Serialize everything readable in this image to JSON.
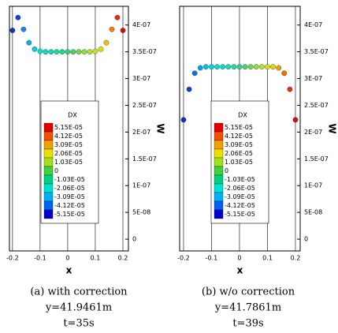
{
  "chart_data": [
    {
      "type": "scatter",
      "x_label": "x",
      "y_label": "W",
      "caption": [
        "(a) with correction",
        "y=41.9461m",
        "t=35s"
      ],
      "xlim": [
        -0.211,
        0.22
      ],
      "ylim": [
        -2.2e-08,
        4.35e-07
      ],
      "xticks": [
        -0.2,
        -0.1,
        0,
        0.1,
        0.2
      ],
      "yticks": [
        0,
        {
          "value": 5e-08,
          "label": "5E-08"
        },
        {
          "value": 1e-07,
          "label": "1E-07"
        },
        {
          "value": 1.5e-07,
          "label": "1.5E-07"
        },
        {
          "value": 2e-07,
          "label": "2E-07"
        },
        {
          "value": 2.5e-07,
          "label": "2.5E-07"
        },
        {
          "value": 3e-07,
          "label": "3E-07"
        },
        {
          "value": 3.5e-07,
          "label": "3.5E-07"
        },
        {
          "value": 4e-07,
          "label": "4E-07"
        }
      ],
      "grid": "x",
      "series": [
        {
          "x": [
            -0.2,
            -0.18,
            -0.16,
            -0.14,
            -0.12,
            -0.1,
            -0.08,
            -0.06,
            -0.04,
            -0.02,
            0,
            0.02,
            0.04,
            0.06,
            0.08,
            0.1,
            0.12,
            0.14,
            0.16,
            0.18,
            0.2
          ],
          "values": [
            3.9e-07,
            4.14e-07,
            3.92e-07,
            3.67e-07,
            3.55e-07,
            3.51e-07,
            3.5e-07,
            3.5e-07,
            3.5e-07,
            3.5e-07,
            3.5e-07,
            3.5e-07,
            3.5e-07,
            3.5e-07,
            3.5e-07,
            3.51e-07,
            3.55e-07,
            3.67e-07,
            3.92e-07,
            4.14e-07,
            3.9e-07
          ],
          "colors": [
            "#1030c0",
            "#1040d0",
            "#2080f0",
            "#00b0f0",
            "#00d0e0",
            "#00e0d0",
            "#00e0c0",
            "#00e0b0",
            "#10e0a0",
            "#20d890",
            "#30d080",
            "#50d060",
            "#70d850",
            "#90e040",
            "#b0e030",
            "#c8e020",
            "#e0e000",
            "#f0c000",
            "#f08000",
            "#e03010",
            "#d01010"
          ]
        }
      ],
      "legend": {
        "title": "DX",
        "levels": [
          {
            "value": 5.15e-05,
            "label": "5.15E-05",
            "color": "#e00000"
          },
          {
            "value": 4.12e-05,
            "label": "4.12E-05",
            "color": "#f05000"
          },
          {
            "value": 3.09e-05,
            "label": "3.09E-05",
            "color": "#f0a000"
          },
          {
            "value": 2.06e-05,
            "label": "2.06E-05",
            "color": "#e8e000"
          },
          {
            "value": 1.03e-05,
            "label": "1.03E-05",
            "color": "#a0e020"
          },
          {
            "value": 0,
            "label": "0",
            "color": "#40d040"
          },
          {
            "value": -1.03e-05,
            "label": "-1.03E-05",
            "color": "#00d080"
          },
          {
            "value": -2.06e-05,
            "label": "-2.06E-05",
            "color": "#00e0d0"
          },
          {
            "value": -3.09e-05,
            "label": "-3.09E-05",
            "color": "#00b0f0"
          },
          {
            "value": -4.12e-05,
            "label": "-4.12E-05",
            "color": "#0060f0"
          },
          {
            "value": -5.15e-05,
            "label": "-5.15E-05",
            "color": "#0000d0"
          }
        ]
      }
    },
    {
      "type": "scatter",
      "x_label": "x",
      "y_label": "W",
      "caption": [
        "(b) w/o correction",
        "y=41.7861m",
        "t=39s"
      ],
      "xlim": [
        -0.214,
        0.217
      ],
      "ylim": [
        -2.2e-08,
        4.35e-07
      ],
      "xticks": [
        -0.2,
        -0.1,
        0,
        0.1,
        0.2
      ],
      "yticks": [
        0,
        {
          "value": 5e-08,
          "label": "5E-08"
        },
        {
          "value": 1e-07,
          "label": "1E-07"
        },
        {
          "value": 1.5e-07,
          "label": "1.5E-07"
        },
        {
          "value": 2e-07,
          "label": "2E-07"
        },
        {
          "value": 2.5e-07,
          "label": "2.5E-07"
        },
        {
          "value": 3e-07,
          "label": "3E-07"
        },
        {
          "value": 3.5e-07,
          "label": "3.5E-07"
        },
        {
          "value": 4e-07,
          "label": "4E-07"
        }
      ],
      "grid": "x",
      "series": [
        {
          "x": [
            -0.2,
            -0.18,
            -0.16,
            -0.14,
            -0.12,
            -0.1,
            -0.08,
            -0.06,
            -0.04,
            -0.02,
            0,
            0.02,
            0.04,
            0.06,
            0.08,
            0.1,
            0.12,
            0.14,
            0.16,
            0.18,
            0.2
          ],
          "values": [
            2.23e-07,
            2.8e-07,
            3.1e-07,
            3.2e-07,
            3.22e-07,
            3.22e-07,
            3.22e-07,
            3.22e-07,
            3.22e-07,
            3.22e-07,
            3.22e-07,
            3.22e-07,
            3.22e-07,
            3.22e-07,
            3.22e-07,
            3.22e-07,
            3.22e-07,
            3.2e-07,
            3.1e-07,
            2.8e-07,
            2.23e-07
          ],
          "colors": [
            "#1030c0",
            "#1040d0",
            "#1070e0",
            "#00a0f0",
            "#00c0f0",
            "#00d0e0",
            "#00e0d0",
            "#00e0c0",
            "#10e0b0",
            "#20d8a0",
            "#30d090",
            "#50d070",
            "#70d850",
            "#90e040",
            "#b0e030",
            "#d0e010",
            "#e8d000",
            "#f0a000",
            "#f07000",
            "#e03010",
            "#d01010"
          ]
        }
      ],
      "legend": {
        "title": "DX",
        "levels": [
          {
            "value": 5.15e-05,
            "label": "5.15E-05",
            "color": "#e00000"
          },
          {
            "value": 4.12e-05,
            "label": "4.12E-05",
            "color": "#f05000"
          },
          {
            "value": 3.09e-05,
            "label": "3.09E-05",
            "color": "#f0a000"
          },
          {
            "value": 2.06e-05,
            "label": "2.06E-05",
            "color": "#e8e000"
          },
          {
            "value": 1.03e-05,
            "label": "1.03E-05",
            "color": "#a0e020"
          },
          {
            "value": 0,
            "label": "0",
            "color": "#40d040"
          },
          {
            "value": -1.03e-05,
            "label": "-1.03E-05",
            "color": "#00d080"
          },
          {
            "value": -2.06e-05,
            "label": "-2.06E-05",
            "color": "#00e0d0"
          },
          {
            "value": -3.09e-05,
            "label": "-3.09E-05",
            "color": "#00b0f0"
          },
          {
            "value": -4.12e-05,
            "label": "-4.12E-05",
            "color": "#0060f0"
          },
          {
            "value": -5.15e-05,
            "label": "-5.15E-05",
            "color": "#0000d0"
          }
        ]
      }
    }
  ]
}
